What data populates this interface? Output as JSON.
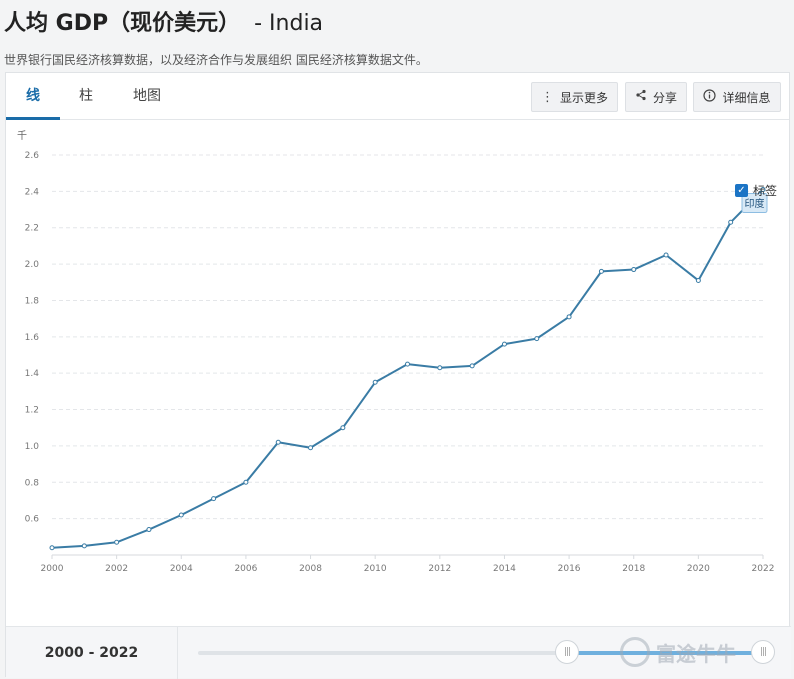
{
  "header": {
    "title": "人均 GDP（现价美元）",
    "country": "- India",
    "subtitle": "世界银行国民经济核算数据，以及经济合作与发展组织 国民经济核算数据文件。"
  },
  "tabs": [
    "线",
    "柱",
    "地图"
  ],
  "toolbar": {
    "more_label": "显示更多",
    "share_label": "分享",
    "details_label": "详细信息"
  },
  "labels_toggle": {
    "label": "标签",
    "checked": true
  },
  "footer": {
    "range_label": "2000 - 2022",
    "watermark": "富途牛牛",
    "range_start_fraction": 0.65,
    "range_end_fraction": 0.98
  },
  "chart_data": {
    "type": "line",
    "unit_label": "千",
    "x": [
      2000,
      2001,
      2002,
      2003,
      2004,
      2005,
      2006,
      2007,
      2008,
      2009,
      2010,
      2011,
      2012,
      2013,
      2014,
      2015,
      2016,
      2017,
      2018,
      2019,
      2020,
      2021,
      2022
    ],
    "series": [
      {
        "name": "印度",
        "values": [
          0.44,
          0.45,
          0.47,
          0.54,
          0.62,
          0.71,
          0.8,
          1.02,
          0.99,
          1.1,
          1.35,
          1.45,
          1.43,
          1.44,
          1.56,
          1.59,
          1.71,
          1.96,
          1.97,
          2.05,
          1.91,
          2.23,
          2.41
        ]
      }
    ],
    "xticks": [
      "2000",
      "2002",
      "2004",
      "2006",
      "2008",
      "2010",
      "2012",
      "2014",
      "2016",
      "2018",
      "2020",
      "2022"
    ],
    "yticks": [
      "0.6",
      "0.8",
      "1.0",
      "1.2",
      "1.4",
      "1.6",
      "1.8",
      "2.0",
      "2.2",
      "2.4",
      "2.6"
    ],
    "ylim": [
      0.4,
      2.6
    ],
    "xlim": [
      2000,
      2022
    ],
    "grid": true,
    "line_color": "#3a7ca5",
    "end_label": "印度"
  }
}
